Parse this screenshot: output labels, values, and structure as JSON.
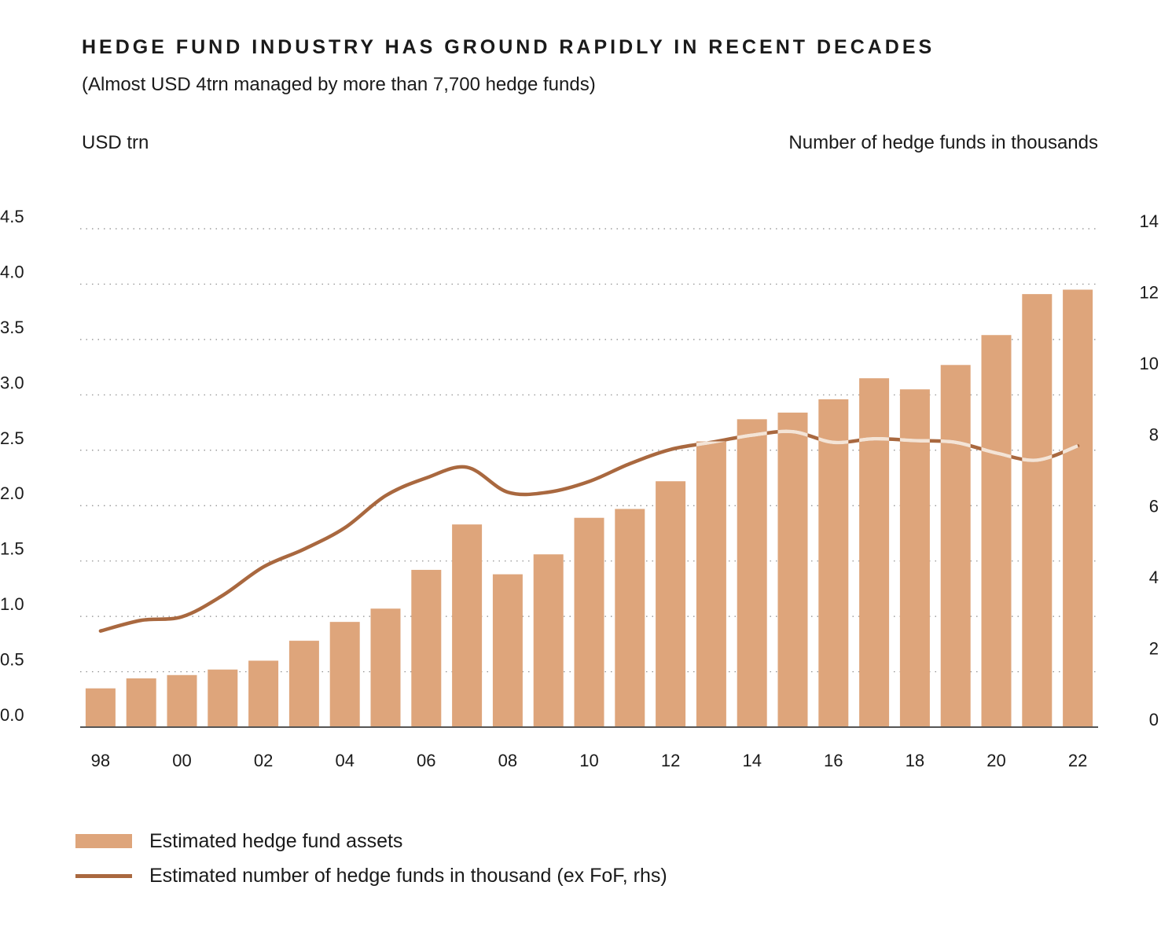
{
  "header": {
    "title": "HEDGE FUND INDUSTRY HAS GROUND RAPIDLY IN RECENT DECADES",
    "subtitle": "(Almost USD 4trn managed by more than 7,700 hedge funds)",
    "left_unit": "USD trn",
    "right_unit": "Number of hedge funds in thousands"
  },
  "legend": {
    "bars_label": "Estimated hedge fund assets",
    "line_label": "Estimated number of hedge funds in thousand (ex FoF, rhs)"
  },
  "colors": {
    "bar": "#dea57b",
    "line": "#a9683f",
    "line_highlight": "#f4e4d6",
    "grid": "#8a8a8a",
    "axis": "#555555"
  },
  "chart_data": {
    "type": "bar",
    "categories": [
      "98",
      "99",
      "00",
      "01",
      "02",
      "03",
      "04",
      "05",
      "06",
      "07",
      "08",
      "09",
      "10",
      "11",
      "12",
      "13",
      "14",
      "15",
      "16",
      "17",
      "18",
      "19",
      "20",
      "21",
      "22"
    ],
    "x_tick_labels": [
      "98",
      "00",
      "02",
      "04",
      "06",
      "08",
      "10",
      "12",
      "14",
      "16",
      "18",
      "20",
      "22"
    ],
    "series": [
      {
        "name": "Estimated hedge fund assets",
        "axis": "left",
        "type": "bar",
        "values": [
          0.35,
          0.44,
          0.47,
          0.52,
          0.6,
          0.78,
          0.95,
          1.07,
          1.42,
          1.83,
          1.38,
          1.56,
          1.89,
          1.97,
          2.22,
          2.58,
          2.78,
          2.84,
          2.96,
          3.15,
          3.05,
          3.27,
          3.54,
          3.91,
          3.95
        ]
      },
      {
        "name": "Estimated number of hedge funds in thousand (ex FoF, rhs)",
        "axis": "right",
        "type": "line",
        "values": [
          2.7,
          3.0,
          3.1,
          3.7,
          4.5,
          5.0,
          5.6,
          6.5,
          7.0,
          7.3,
          6.6,
          6.6,
          6.9,
          7.4,
          7.8,
          8.0,
          8.2,
          8.3,
          8.0,
          8.1,
          8.05,
          8.0,
          7.7,
          7.5,
          7.9
        ]
      }
    ],
    "y_left": {
      "range": [
        0,
        4.5
      ],
      "ticks": [
        "0.0",
        "0.5",
        "1.0",
        "1.5",
        "2.0",
        "2.5",
        "3.0",
        "3.5",
        "4.0",
        "4.5"
      ]
    },
    "y_right": {
      "range": [
        0,
        14
      ],
      "ticks": [
        "0",
        "2",
        "4",
        "6",
        "8",
        "10",
        "12",
        "14"
      ]
    },
    "grid": true,
    "legend_position": "bottom-left"
  }
}
